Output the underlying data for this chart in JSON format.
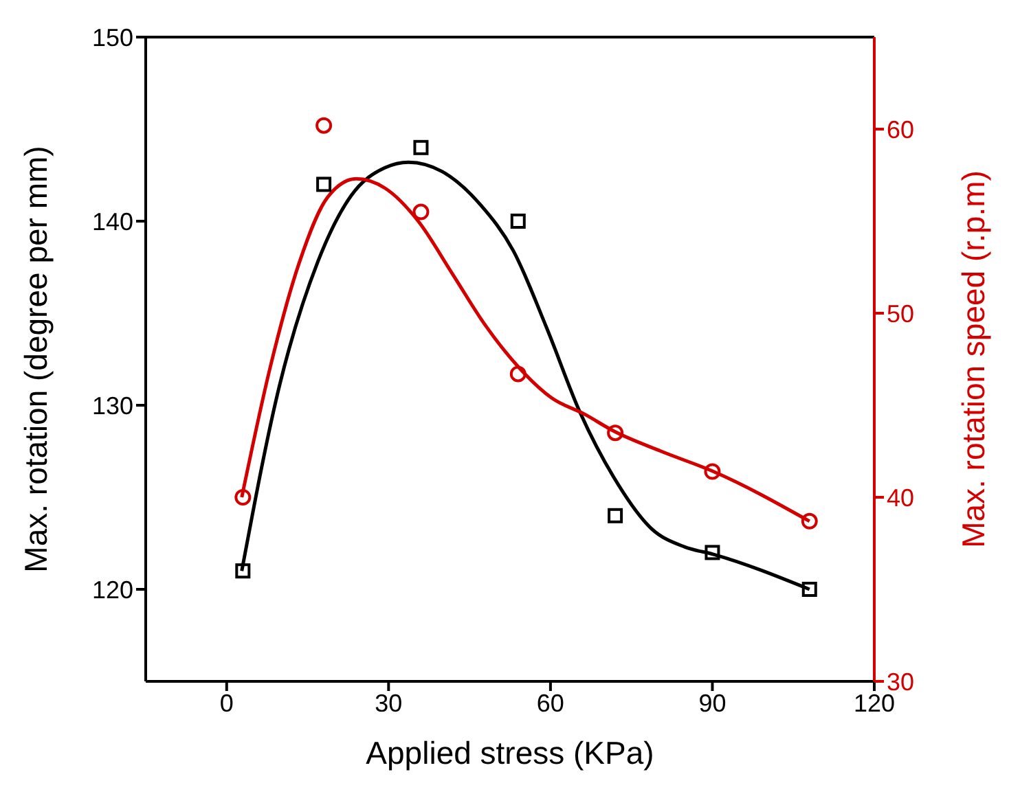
{
  "chart_data": {
    "type": "scatter",
    "xlabel": "Applied stress (KPa)",
    "ylabel": "Max. rotation (degree per mm)",
    "y2label": "Max. rotation speed (r.p.m)",
    "xlim": [
      -15,
      120
    ],
    "xticks": [
      0,
      30,
      60,
      90,
      120
    ],
    "ylim": [
      115,
      150
    ],
    "yticks": [
      120,
      130,
      140,
      150
    ],
    "y2lim": [
      30,
      65
    ],
    "y2ticks": [
      30,
      40,
      50,
      60
    ],
    "grid": false,
    "legend": false,
    "series": [
      {
        "type": "scatter",
        "color": "#000000",
        "marker": "square",
        "x": [
          3,
          18,
          36,
          54,
          72,
          90,
          108
        ],
        "values": [
          121,
          142,
          144,
          140,
          124,
          122,
          120
        ]
      },
      {
        "type": "scatter",
        "color": "#d40000",
        "marker": "circle",
        "axis": "y2",
        "x": [
          3,
          18,
          36,
          54,
          72,
          90,
          108
        ],
        "values": [
          40,
          60.2,
          55.5,
          46.7,
          43.5,
          41.4,
          38.7
        ]
      },
      {
        "type": "line",
        "color": "#000000",
        "marker": "none",
        "x": [
          2.8,
          9.9,
          16.9,
          23.1,
          29.3,
          33.7,
          39.9,
          47,
          53.1,
          59.3,
          65.5,
          71.7,
          78.7,
          84.9,
          90.2,
          108
        ],
        "values": [
          121,
          131.2,
          137.8,
          141.4,
          142.9,
          143.2,
          142.7,
          140.9,
          138.4,
          134.2,
          129.6,
          126.1,
          123.3,
          122.3,
          121.9,
          120
        ]
      },
      {
        "type": "line",
        "color": "#d40000",
        "marker": "none",
        "axis": "y2",
        "x": [
          2.8,
          8.1,
          13.4,
          18.7,
          24,
          29.3,
          35.5,
          41.7,
          47.8,
          54,
          60.2,
          66.4,
          71.7,
          80.5,
          90.2,
          108
        ],
        "values": [
          40,
          47.1,
          52.7,
          56.3,
          57.3,
          56.8,
          55,
          52.2,
          49.4,
          47.1,
          45.4,
          44.5,
          43.6,
          42.5,
          41.4,
          38.7
        ]
      }
    ]
  }
}
